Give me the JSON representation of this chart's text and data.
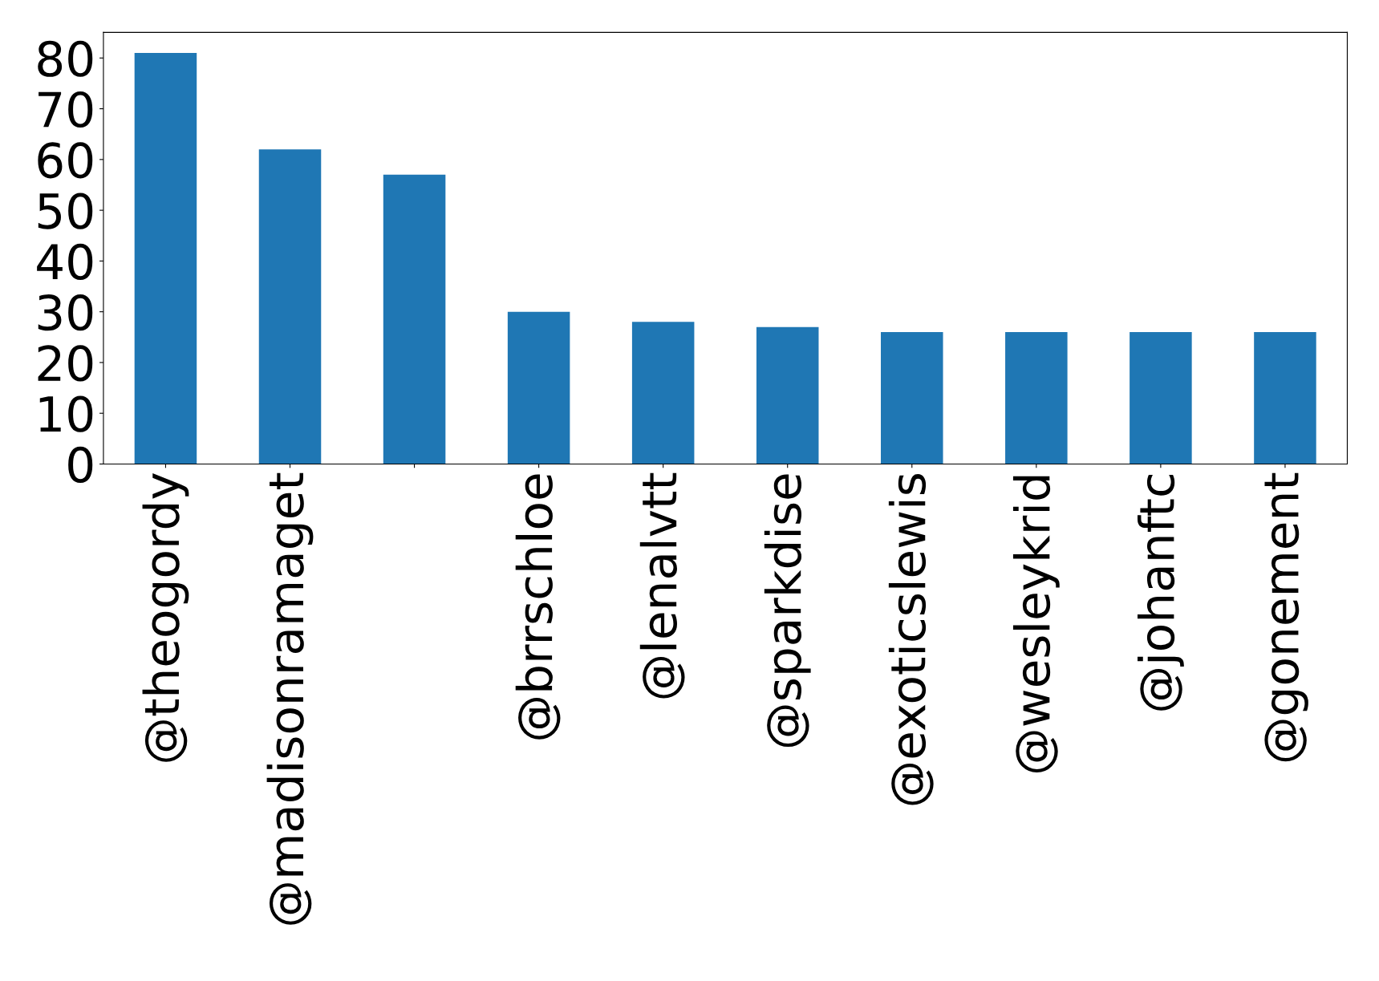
{
  "chart_data": {
    "type": "bar",
    "categories": [
      "@theogordy",
      "@madisonramaget",
      null,
      "@brrschloe",
      "@lenalvtt",
      "@sparkdise",
      "@exoticslewis",
      "@wesleykrid",
      "@johanftc",
      "@gonement"
    ],
    "values": [
      81,
      62,
      57,
      30,
      28,
      27,
      26,
      26,
      26,
      26
    ],
    "color": "#1f77b4",
    "ylim": [
      0,
      85.05
    ],
    "yticks": [
      0,
      10,
      20,
      30,
      40,
      50,
      60,
      70,
      80
    ],
    "grid": false
  }
}
